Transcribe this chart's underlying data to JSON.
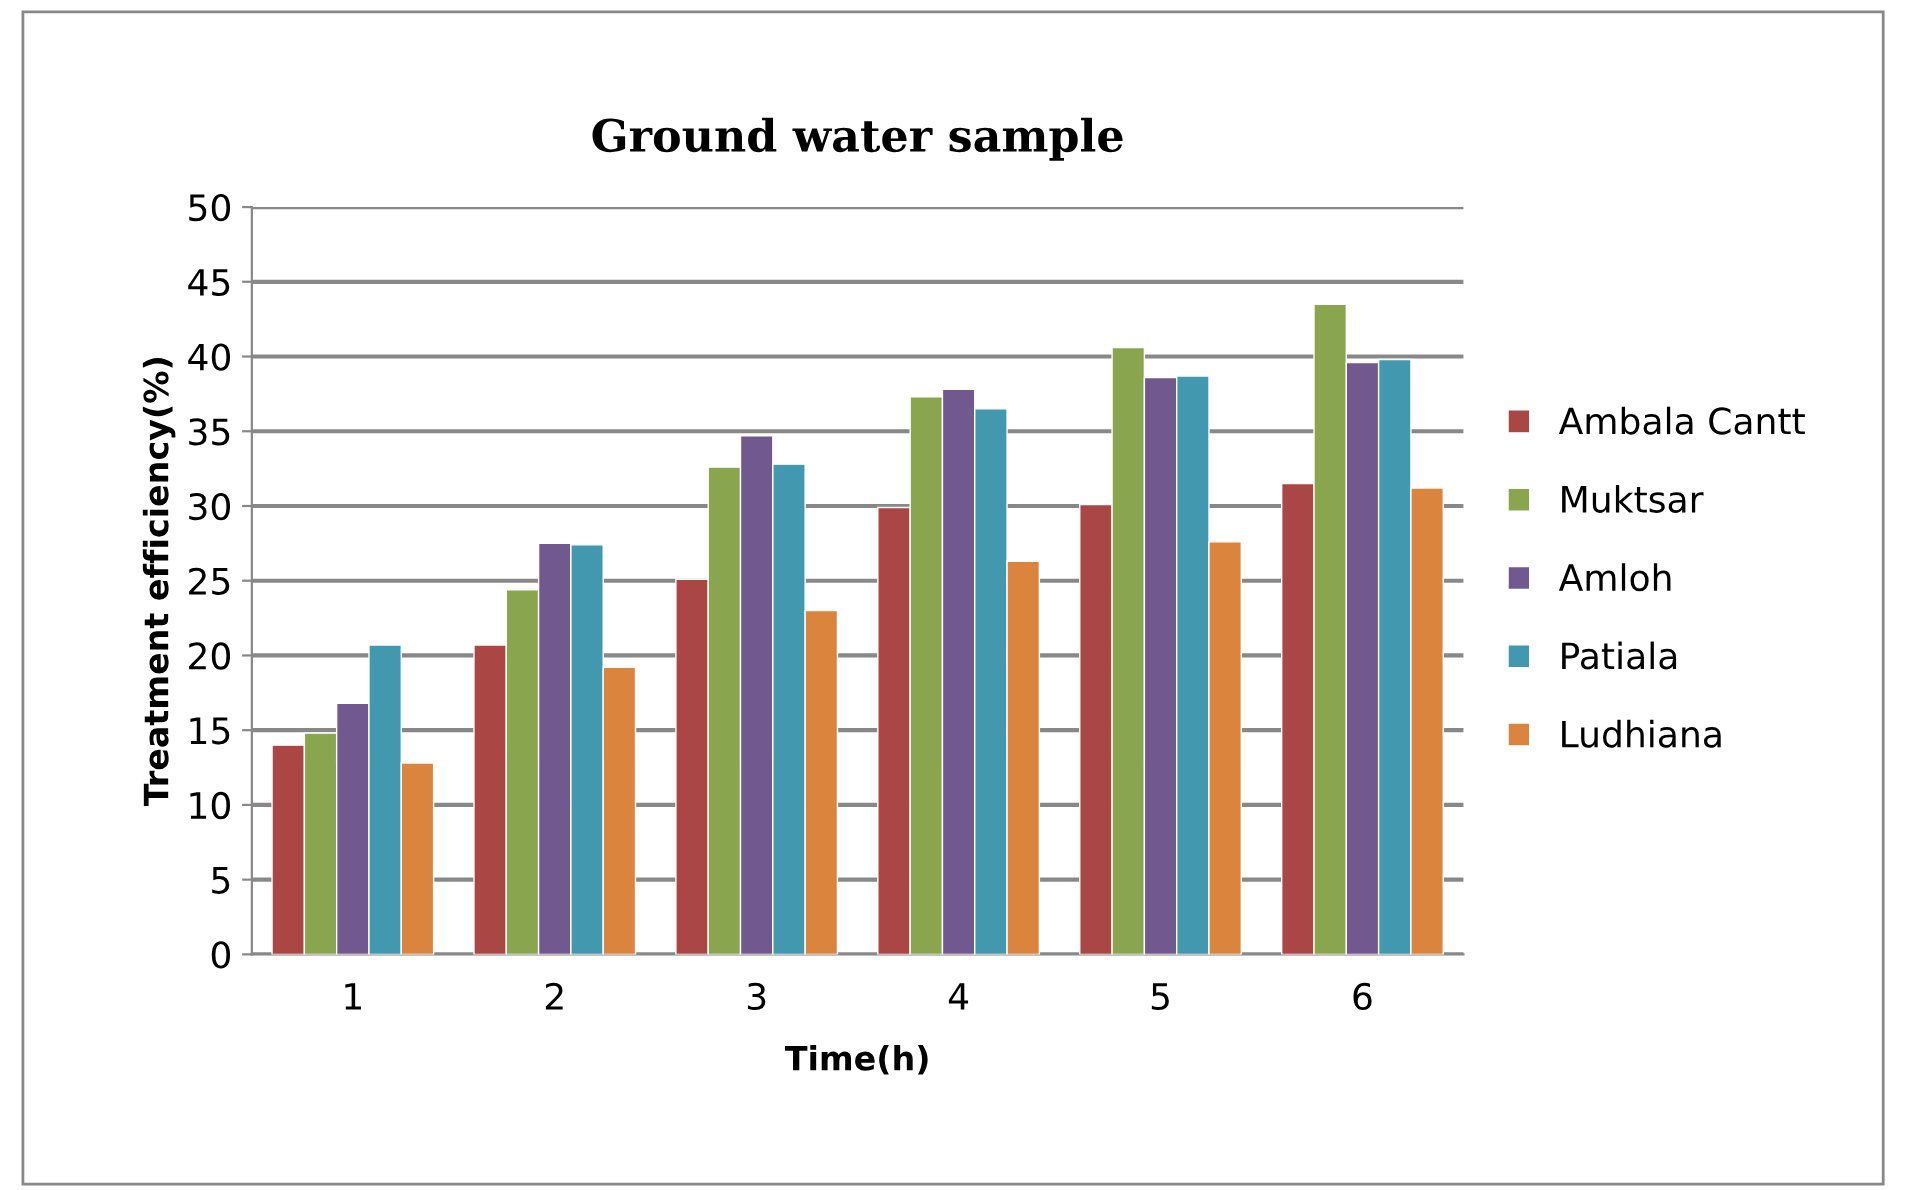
{
  "chart_data": {
    "type": "bar",
    "title": "Ground water sample",
    "xlabel": "Time(h)",
    "ylabel": "Treatment efficiency(%)",
    "categories": [
      "1",
      "2",
      "3",
      "4",
      "5",
      "6"
    ],
    "series": [
      {
        "name": "Ambala Cantt",
        "color": "#aa4644",
        "values": [
          14.0,
          20.7,
          25.1,
          29.9,
          30.1,
          31.5
        ]
      },
      {
        "name": "Muktsar",
        "color": "#89a54e",
        "values": [
          14.8,
          24.4,
          32.6,
          37.3,
          40.6,
          43.5
        ]
      },
      {
        "name": "Amloh",
        "color": "#71588f",
        "values": [
          16.8,
          27.5,
          34.7,
          37.8,
          38.6,
          39.6
        ]
      },
      {
        "name": "Patiala",
        "color": "#4198af",
        "values": [
          20.7,
          27.4,
          32.8,
          36.5,
          38.7,
          39.8
        ]
      },
      {
        "name": "Ludhiana",
        "color": "#db843d",
        "values": [
          12.8,
          19.2,
          23.0,
          26.3,
          27.6,
          31.2
        ]
      }
    ],
    "ylim": [
      0,
      50
    ],
    "yticks": [
      0,
      5,
      10,
      15,
      20,
      25,
      30,
      35,
      40,
      45,
      50
    ],
    "grid": "y",
    "legend": "right"
  }
}
